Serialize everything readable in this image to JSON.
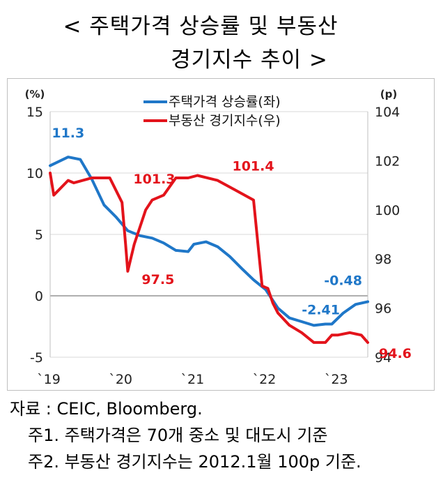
{
  "title": {
    "line1": "< 주택가격 상승률 및 부동산",
    "line2": "경기지수 추이 >"
  },
  "source": "자료 : CEIC, Bloomberg.",
  "notes": [
    "주1. 주택가격은 70개 중소 및 대도시 기준",
    "주2. 부동산 경기지수는 2012.1월 100p 기준."
  ],
  "colors": {
    "housing": "#1f77c8",
    "realestate": "#e3131b"
  },
  "chart_data": {
    "type": "line",
    "y_left": {
      "unit": "(%)",
      "range": [
        -5,
        15
      ],
      "ticks": [
        15,
        10,
        5,
        0,
        -5
      ]
    },
    "y_right": {
      "unit": "(p)",
      "range": [
        94,
        104
      ],
      "ticks": [
        104,
        102,
        100,
        98,
        96,
        94
      ]
    },
    "x_ticks": [
      "`19",
      "`20",
      "`21",
      "`22",
      "`23"
    ],
    "legend_position": "top-center",
    "series": [
      {
        "name": "주택가격 상승률(좌)",
        "axis": "left",
        "color": "#1f77c8",
        "x": [
          2019.0,
          2019.25,
          2019.42,
          2019.58,
          2019.75,
          2019.92,
          2020.08,
          2020.25,
          2020.42,
          2020.58,
          2020.75,
          2020.92,
          2021.0,
          2021.17,
          2021.33,
          2021.5,
          2021.67,
          2021.83,
          2022.0,
          2022.17,
          2022.33,
          2022.5,
          2022.67,
          2022.83,
          2022.92,
          2023.08,
          2023.25,
          2023.42
        ],
        "y": [
          10.6,
          11.3,
          11.1,
          9.5,
          7.4,
          6.4,
          5.3,
          4.9,
          4.7,
          4.3,
          3.7,
          3.6,
          4.2,
          4.4,
          4.0,
          3.2,
          2.2,
          1.3,
          0.5,
          -1.0,
          -1.8,
          -2.1,
          -2.41,
          -2.3,
          -2.3,
          -1.4,
          -0.7,
          -0.48
        ]
      },
      {
        "name": "부동산 경기지수(우)",
        "axis": "right",
        "color": "#e3131b",
        "x": [
          2019.0,
          2019.05,
          2019.25,
          2019.33,
          2019.58,
          2019.83,
          2020.0,
          2020.05,
          2020.08,
          2020.17,
          2020.33,
          2020.42,
          2020.58,
          2020.75,
          2020.92,
          2021.05,
          2021.33,
          2021.58,
          2021.83,
          2021.95,
          2022.03,
          2022.1,
          2022.17,
          2022.33,
          2022.5,
          2022.67,
          2022.83,
          2022.92,
          2023.0,
          2023.17,
          2023.33,
          2023.42
        ],
        "y": [
          101.5,
          100.6,
          101.2,
          101.1,
          101.3,
          101.3,
          100.3,
          98.6,
          97.5,
          98.6,
          100.0,
          100.4,
          100.6,
          101.3,
          101.3,
          101.4,
          101.2,
          100.8,
          100.4,
          96.9,
          96.8,
          96.2,
          95.8,
          95.3,
          95.0,
          94.6,
          94.6,
          94.9,
          94.9,
          95.0,
          94.9,
          94.6
        ]
      }
    ],
    "annotations": [
      {
        "text": "11.3",
        "series": 0,
        "x": 2019.25,
        "y": 11.3
      },
      {
        "text": "-0.48",
        "series": 0,
        "x": 2023.42,
        "y": -0.48
      },
      {
        "text": "-2.41",
        "series": 0,
        "x": 2022.67,
        "y": -2.41
      },
      {
        "text": "101.3",
        "series": 1,
        "x": 2020.08,
        "y": 101.3
      },
      {
        "text": "101.4",
        "series": 1,
        "x": 2021.05,
        "y": 101.4
      },
      {
        "text": "97.5",
        "series": 1,
        "x": 2020.08,
        "y": 97.5
      },
      {
        "text": "94.6",
        "series": 1,
        "x": 2023.42,
        "y": 94.6
      }
    ]
  }
}
